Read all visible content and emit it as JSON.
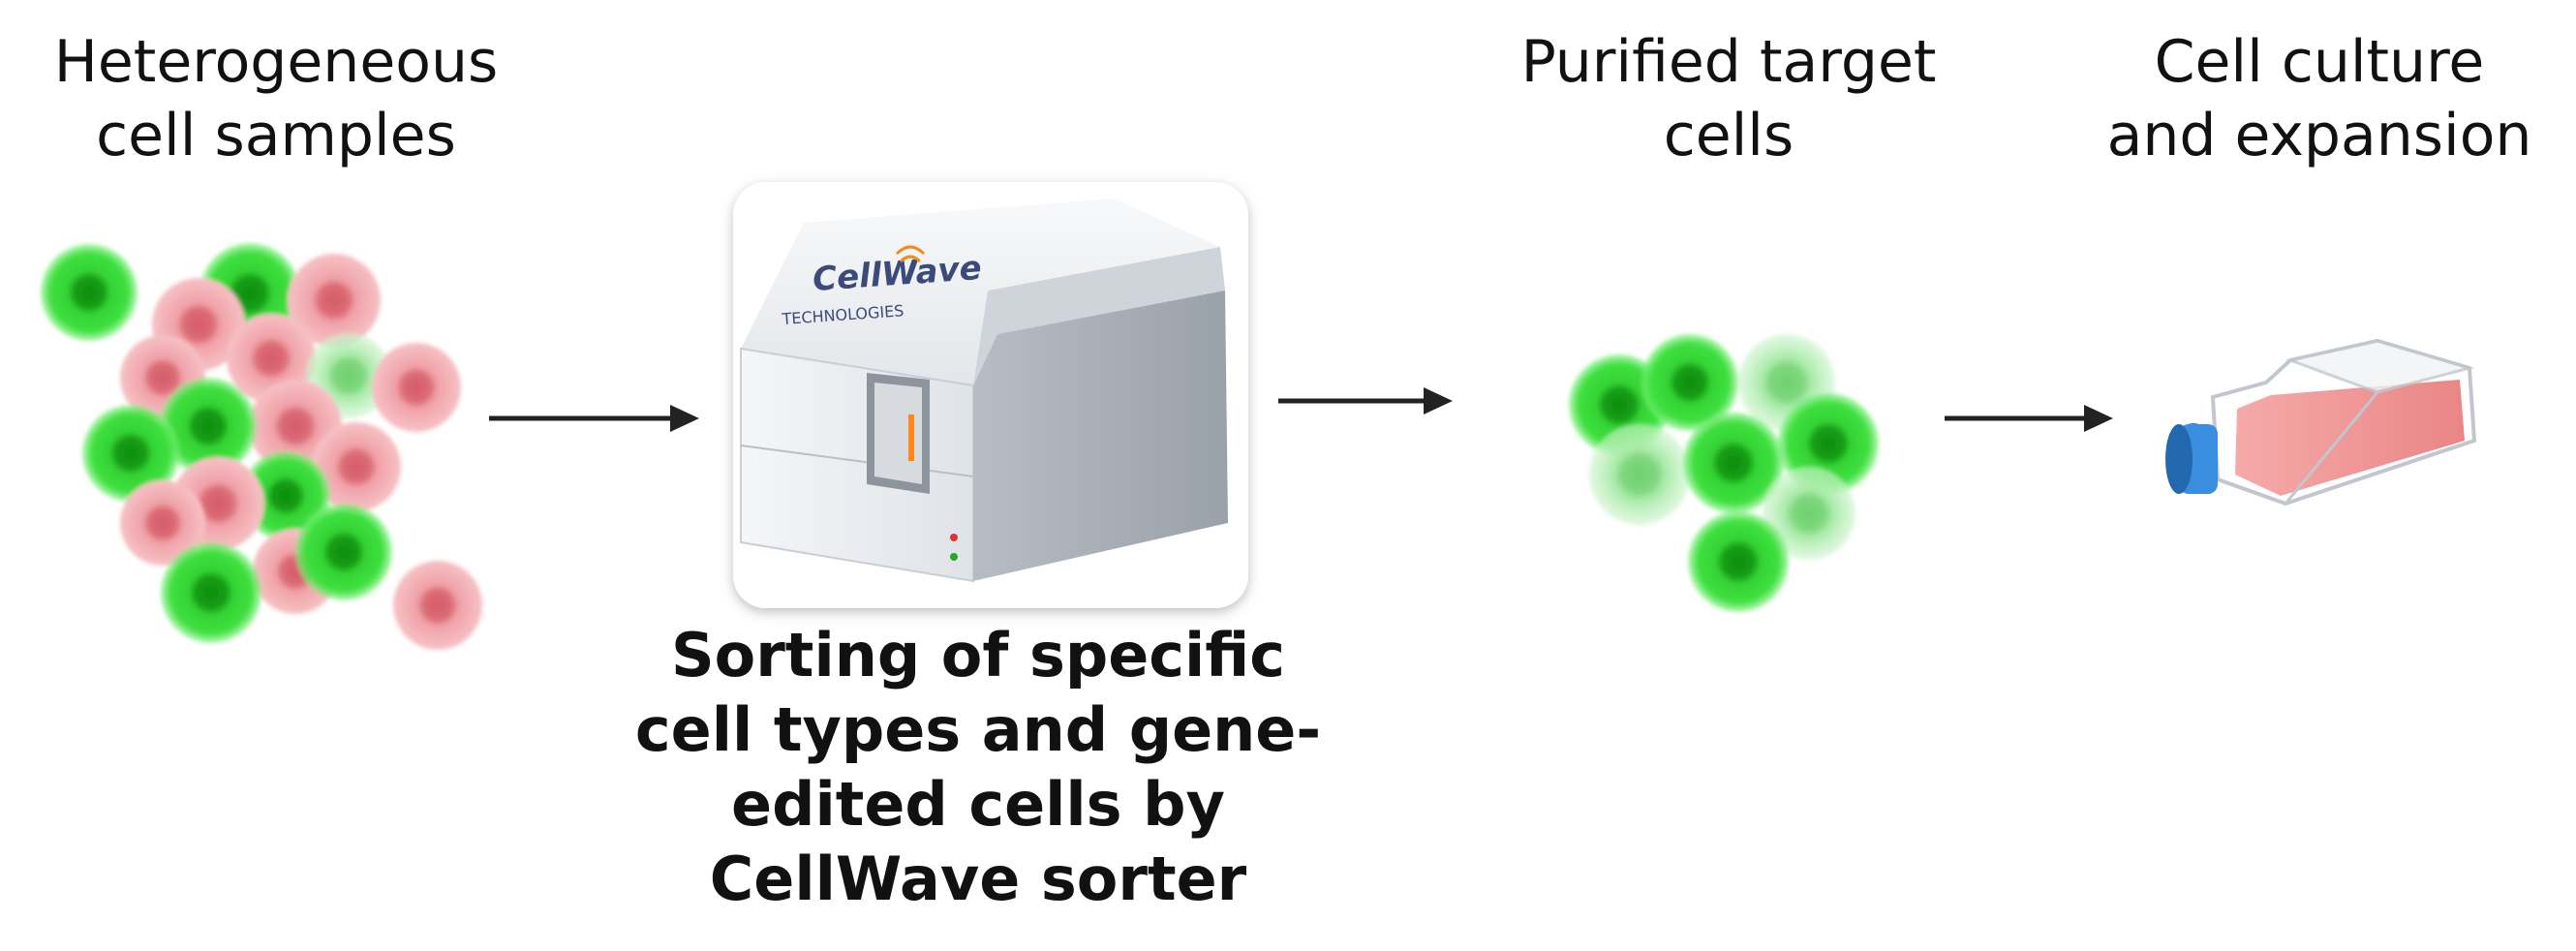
{
  "steps": [
    {
      "lines": [
        "Heterogeneous",
        "cell samples"
      ]
    },
    {
      "lines": [
        "Sorting of specific",
        "cell types and gene-",
        "edited cells by",
        "CellWave sorter"
      ]
    },
    {
      "lines": [
        "Purified target",
        "cells"
      ]
    },
    {
      "lines": [
        "Cell culture",
        "and expansion"
      ]
    }
  ],
  "machine": {
    "brand": "CellWave",
    "sub": "TECHNOLOGIES"
  },
  "colors": {
    "green": "#2fd12f",
    "green_nucleus": "#0b8a0b",
    "pink": "#ee9aa0",
    "pink_nucleus": "#d96872",
    "arrow": "#222222",
    "flask_cap": "#2f7fd0",
    "flask_media": "#f08a8a"
  }
}
